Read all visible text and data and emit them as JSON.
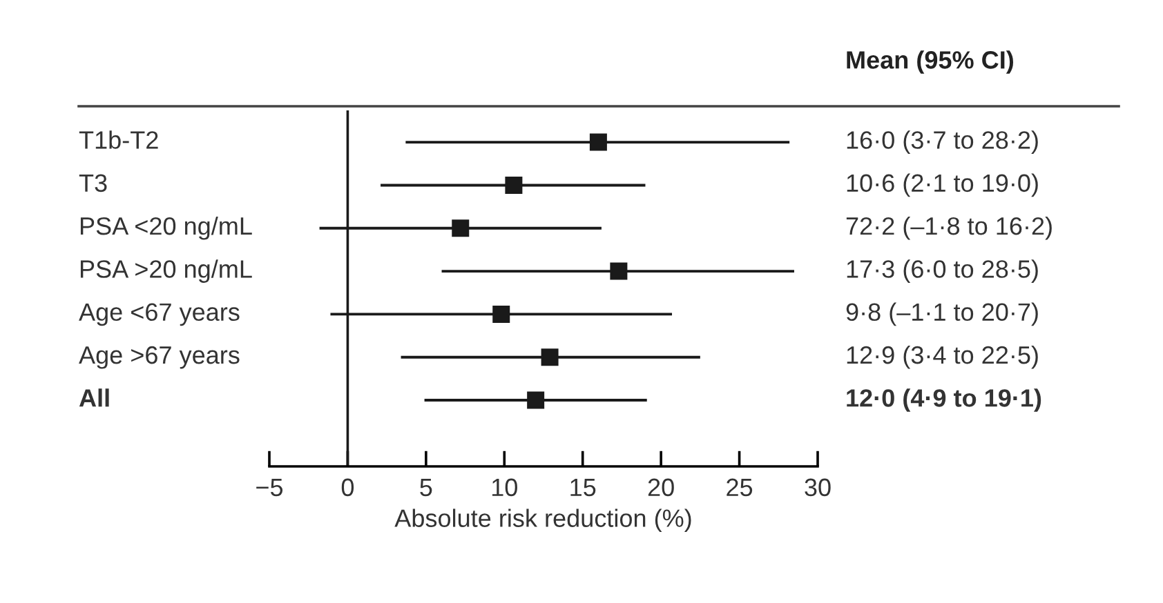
{
  "chart_data": {
    "type": "scatter",
    "orientation": "horizontal",
    "marker": "square",
    "categories": [
      "T1b-T2",
      "T3",
      "PSA <20 ng/mL",
      "PSA >20 ng/mL",
      "Age <67 years",
      "Age >67 years",
      "All"
    ],
    "values": [
      16.0,
      10.6,
      7.2,
      17.3,
      9.8,
      12.9,
      12.0
    ],
    "errors": [
      [
        3.7,
        28.2
      ],
      [
        2.1,
        19.0
      ],
      [
        -1.8,
        16.2
      ],
      [
        6.0,
        28.5
      ],
      [
        -1.1,
        20.7
      ],
      [
        3.4,
        22.5
      ],
      [
        4.9,
        19.1
      ]
    ],
    "color": "#1a1a1a",
    "xlabel": "Absolute risk reduction (%)",
    "xlim": [
      -5,
      30
    ],
    "xticks": [
      {
        "value": -5,
        "label": "−5"
      },
      0,
      5,
      10,
      15,
      20,
      25,
      30
    ],
    "ref_lines": [
      {
        "axis": "x",
        "value": 0,
        "color": "#1a1a1a"
      }
    ],
    "annotations": [
      "Mean (95% CI)",
      "16·0 (3·7 to 28·2)",
      "10·6 (2·1 to 19·0)",
      "72·2 (–1·8 to 16·2)",
      "17·3 (6·0 to 28·5)",
      "9·8 (–1·1 to 20·7)",
      "12·9 (3·4 to 22·5)",
      "12·0 (4·9 to 19·1)"
    ],
    "grid": false,
    "legend": false
  }
}
